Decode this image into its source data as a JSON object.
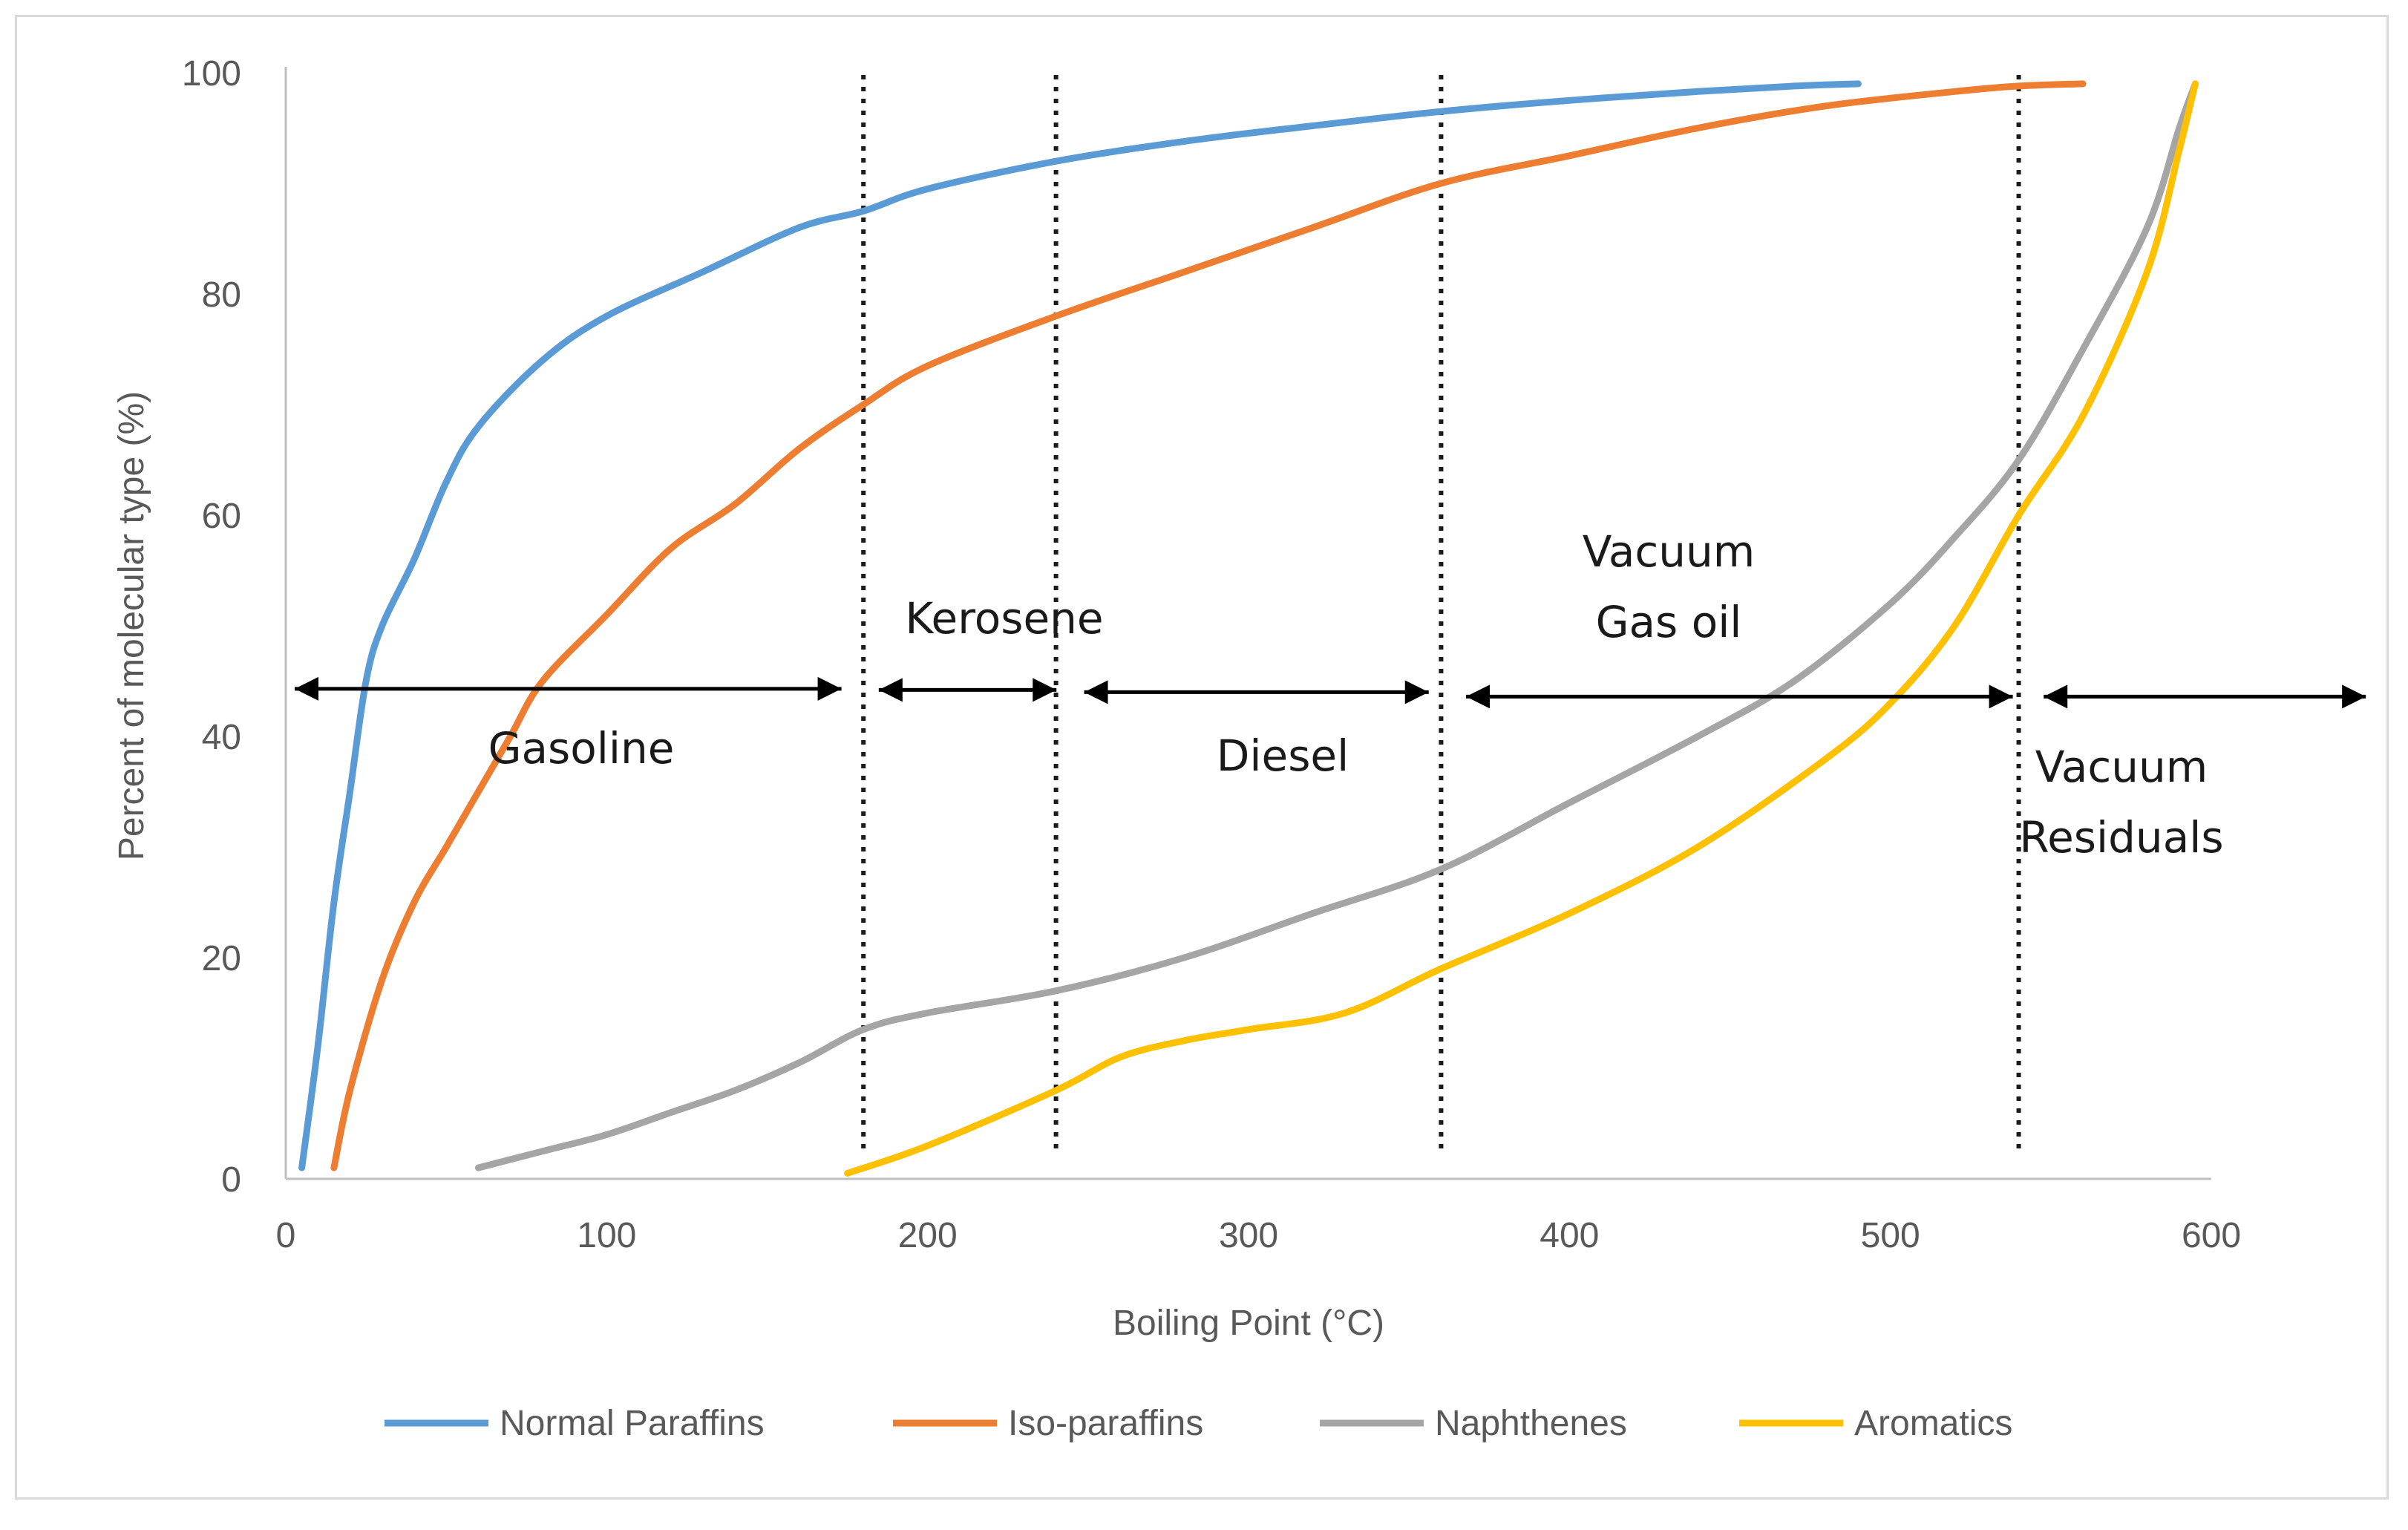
{
  "chart_data": {
    "type": "line",
    "title": "",
    "xlabel": "Boiling Point (°C)",
    "ylabel": "Percent of molecular type (%)",
    "xlim": [
      0,
      600
    ],
    "ylim": [
      0,
      100
    ],
    "x_ticks": [
      0,
      100,
      200,
      300,
      400,
      500,
      600
    ],
    "y_ticks": [
      0,
      20,
      40,
      60,
      80,
      100
    ],
    "x_tick_labels": [
      "0",
      "100",
      "200",
      "300",
      "400",
      "500",
      "600"
    ],
    "y_tick_labels": [
      "0",
      "20",
      "40",
      "60",
      "80",
      "100"
    ],
    "grid": false,
    "legend_position": "bottom",
    "series": [
      {
        "name": "Normal Paraffins",
        "color": "#5b9bd5",
        "points": [
          [
            5,
            1
          ],
          [
            10,
            12
          ],
          [
            15,
            25
          ],
          [
            20,
            35
          ],
          [
            25,
            45
          ],
          [
            30,
            50
          ],
          [
            40,
            56
          ],
          [
            50,
            63
          ],
          [
            60,
            68
          ],
          [
            80,
            74
          ],
          [
            100,
            78
          ],
          [
            130,
            82
          ],
          [
            160,
            86
          ],
          [
            180,
            87.5
          ],
          [
            200,
            89.5
          ],
          [
            240,
            92
          ],
          [
            280,
            93.8
          ],
          [
            320,
            95.2
          ],
          [
            360,
            96.5
          ],
          [
            400,
            97.5
          ],
          [
            440,
            98.3
          ],
          [
            470,
            98.8
          ],
          [
            490,
            99
          ]
        ]
      },
      {
        "name": "Iso-paraffins",
        "color": "#ed7d31",
        "points": [
          [
            15,
            1
          ],
          [
            20,
            8
          ],
          [
            30,
            18
          ],
          [
            40,
            25
          ],
          [
            50,
            30
          ],
          [
            60,
            35
          ],
          [
            70,
            40
          ],
          [
            80,
            45
          ],
          [
            100,
            51
          ],
          [
            120,
            57
          ],
          [
            140,
            61
          ],
          [
            160,
            66
          ],
          [
            180,
            70
          ],
          [
            200,
            73.5
          ],
          [
            240,
            78
          ],
          [
            280,
            82
          ],
          [
            320,
            86
          ],
          [
            360,
            90
          ],
          [
            400,
            92.5
          ],
          [
            440,
            95
          ],
          [
            480,
            97
          ],
          [
            520,
            98.3
          ],
          [
            540,
            98.8
          ],
          [
            560,
            99
          ]
        ]
      },
      {
        "name": "Naphthenes",
        "color": "#a5a5a5",
        "points": [
          [
            60,
            1
          ],
          [
            80,
            2.5
          ],
          [
            100,
            4
          ],
          [
            120,
            6
          ],
          [
            140,
            8
          ],
          [
            160,
            10.5
          ],
          [
            180,
            13.5
          ],
          [
            200,
            15
          ],
          [
            240,
            17
          ],
          [
            280,
            20
          ],
          [
            320,
            24
          ],
          [
            360,
            28
          ],
          [
            400,
            34
          ],
          [
            440,
            40
          ],
          [
            470,
            45
          ],
          [
            500,
            52
          ],
          [
            520,
            58
          ],
          [
            540,
            65
          ],
          [
            560,
            75
          ],
          [
            580,
            86
          ],
          [
            590,
            95
          ],
          [
            595,
            99
          ]
        ]
      },
      {
        "name": "Aromatics",
        "color": "#ffc000",
        "points": [
          [
            175,
            0.5
          ],
          [
            200,
            3
          ],
          [
            240,
            8
          ],
          [
            260,
            11
          ],
          [
            280,
            12.5
          ],
          [
            300,
            13.5
          ],
          [
            330,
            15
          ],
          [
            360,
            19
          ],
          [
            400,
            24
          ],
          [
            440,
            30
          ],
          [
            480,
            38
          ],
          [
            500,
            43
          ],
          [
            520,
            50
          ],
          [
            540,
            60
          ],
          [
            560,
            69
          ],
          [
            580,
            82
          ],
          [
            590,
            93
          ],
          [
            595,
            99
          ]
        ]
      }
    ],
    "cut_points_c": [
      180,
      240,
      360,
      540
    ],
    "regions": [
      {
        "name": "Gasoline",
        "lines": [
          "Gasoline"
        ],
        "from": 0,
        "to": 175
      },
      {
        "name": "Kerosene",
        "lines": [
          "Kerosene"
        ],
        "from": 182,
        "to": 242
      },
      {
        "name": "Diesel",
        "lines": [
          "Diesel"
        ],
        "from": 246,
        "to": 358
      },
      {
        "name": "Vacuum Gas oil",
        "lines": [
          "Vacuum",
          "Gas oil"
        ],
        "from": 365,
        "to": 540
      },
      {
        "name": "Vacuum Residuals",
        "lines": [
          "Vacuum",
          "Residuals"
        ],
        "from": 545,
        "to": 650
      }
    ]
  }
}
